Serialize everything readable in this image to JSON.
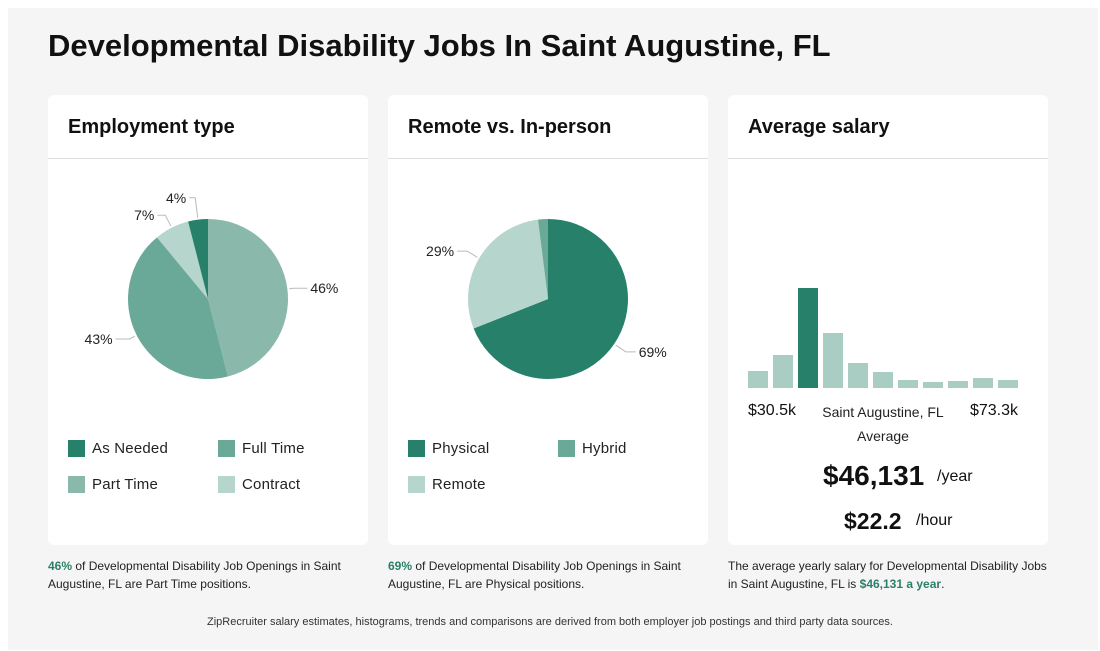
{
  "page": {
    "title": "Developmental Disability Jobs In Saint Augustine, FL",
    "footer": "ZipRecruiter salary estimates, histograms, trends and comparisons are derived from both employer job postings and third party data sources."
  },
  "employment": {
    "title": "Employment type",
    "caption_highlight": "46%",
    "caption_text": " of Developmental Disability Job Openings in Saint Augustine, FL are Part Time positions.",
    "legend": [
      "As Needed",
      "Full Time",
      "Part Time",
      "Contract"
    ]
  },
  "remote": {
    "title": "Remote vs. In-person",
    "caption_highlight": "69%",
    "caption_text": " of Developmental Disability Job Openings in Saint Augustine, FL are Physical positions.",
    "legend": [
      "Physical",
      "Hybrid",
      "Remote"
    ]
  },
  "salary": {
    "title": "Average salary",
    "min_label": "$30.5k",
    "max_label": "$73.3k",
    "location_label": "Saint Augustine, FL",
    "average_label": "Average",
    "yearly_value": "$46,131",
    "yearly_unit": "/year",
    "hourly_value": "$22.2",
    "hourly_unit": "/hour",
    "caption_text": "The average yearly salary for Developmental Disability Jobs in Saint Augustine, FL is ",
    "caption_highlight": "$46,131 a year",
    "caption_end": "."
  },
  "colors": {
    "as_needed": "#26806a",
    "full_time": "#6aa998",
    "part_time": "#8ab9ac",
    "contract": "#b6d5cc",
    "physical": "#26806a",
    "hybrid": "#6aa998",
    "remote": "#b6d5cc",
    "hist_bar": "#a9cdc2",
    "hist_highlight": "#26806a",
    "highlight_text": "#2b7f68"
  },
  "chart_data": [
    {
      "type": "pie",
      "title": "Employment type",
      "start": "top",
      "direction": "clockwise",
      "slices": [
        {
          "name": "Part Time",
          "value": 46,
          "label": "46%",
          "color": "#8ab9ac"
        },
        {
          "name": "Full Time",
          "value": 43,
          "label": "43%",
          "color": "#6aa998"
        },
        {
          "name": "Contract",
          "value": 7,
          "label": "7%",
          "color": "#b6d5cc"
        },
        {
          "name": "As Needed",
          "value": 4,
          "label": "4%",
          "color": "#26806a"
        }
      ]
    },
    {
      "type": "pie",
      "title": "Remote vs. In-person",
      "start": "top",
      "direction": "clockwise",
      "slices": [
        {
          "name": "Physical",
          "value": 69,
          "label": "69%",
          "color": "#26806a"
        },
        {
          "name": "Remote",
          "value": 29,
          "label": "29%",
          "color": "#b6d5cc"
        },
        {
          "name": "Hybrid",
          "value": 2,
          "label": "",
          "color": "#6aa998"
        }
      ]
    },
    {
      "type": "bar",
      "title": "Average salary",
      "x_range": [
        "$30.5k",
        "$73.3k"
      ],
      "values": [
        17,
        33,
        100,
        55,
        25,
        16,
        8,
        6,
        7,
        10,
        8
      ],
      "highlight_index": 2
    }
  ]
}
